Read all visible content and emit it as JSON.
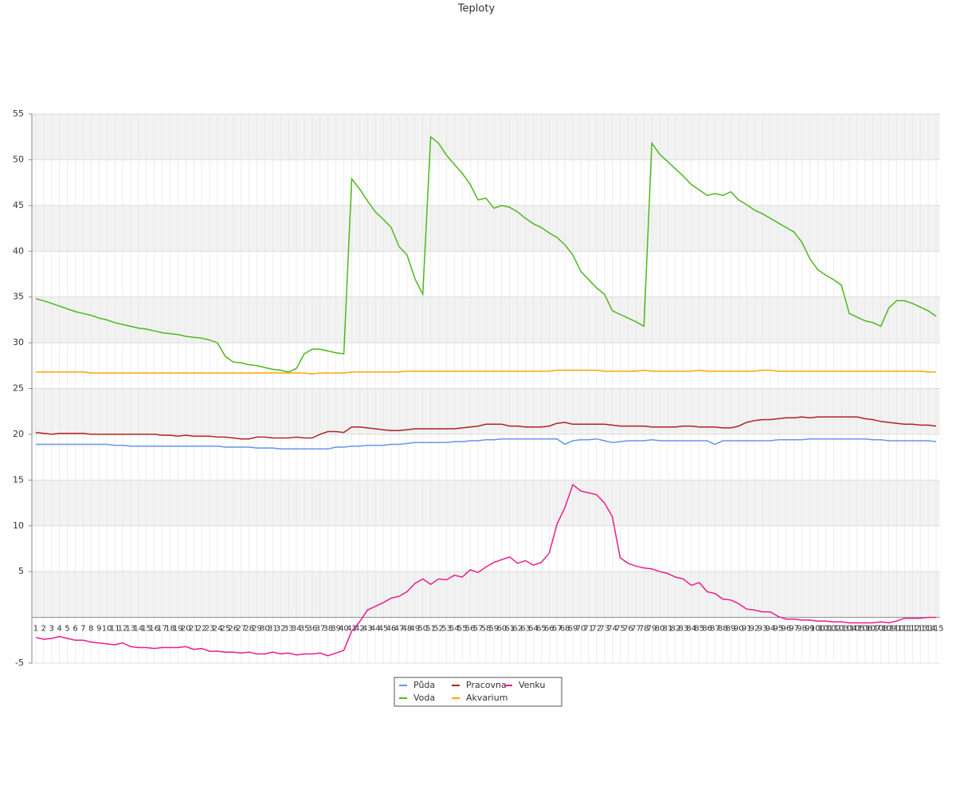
{
  "chart_data": {
    "type": "line",
    "title": "Teploty",
    "categories": [
      1,
      2,
      3,
      4,
      5,
      6,
      7,
      8,
      9,
      10,
      11,
      12,
      13,
      14,
      15,
      16,
      17,
      18,
      19,
      20,
      21,
      22,
      23,
      24,
      25,
      26,
      27,
      28,
      29,
      30,
      31,
      32,
      33,
      34,
      35,
      36,
      37,
      38,
      39,
      40,
      41,
      42,
      43,
      44,
      45,
      46,
      47,
      48,
      49,
      50,
      51,
      52,
      53,
      54,
      55,
      56,
      57,
      58,
      59,
      60,
      61,
      62,
      63,
      64,
      65,
      66,
      67,
      68,
      69,
      70,
      71,
      72,
      73,
      74,
      75,
      76,
      77,
      78,
      79,
      80,
      81,
      82,
      83,
      84,
      85,
      86,
      87,
      88,
      89,
      90,
      91,
      92,
      93,
      94,
      95,
      96,
      97,
      98,
      99,
      100,
      101,
      102,
      103,
      104,
      105,
      106,
      107,
      108,
      109,
      110,
      111,
      112,
      113,
      114,
      115
    ],
    "series": [
      {
        "name": "Půda",
        "color": "#6495ed",
        "values": [
          18.9,
          18.9,
          18.9,
          18.9,
          18.9,
          18.9,
          18.9,
          18.9,
          18.9,
          18.9,
          18.8,
          18.8,
          18.7,
          18.7,
          18.7,
          18.7,
          18.7,
          18.7,
          18.7,
          18.7,
          18.7,
          18.7,
          18.7,
          18.7,
          18.6,
          18.6,
          18.6,
          18.6,
          18.5,
          18.5,
          18.5,
          18.4,
          18.4,
          18.4,
          18.4,
          18.4,
          18.4,
          18.4,
          18.6,
          18.6,
          18.7,
          18.7,
          18.8,
          18.8,
          18.8,
          18.9,
          18.9,
          19.0,
          19.1,
          19.1,
          19.1,
          19.1,
          19.1,
          19.2,
          19.2,
          19.3,
          19.3,
          19.4,
          19.4,
          19.5,
          19.5,
          19.5,
          19.5,
          19.5,
          19.5,
          19.5,
          19.5,
          18.9,
          19.3,
          19.4,
          19.4,
          19.5,
          19.3,
          19.1,
          19.2,
          19.3,
          19.3,
          19.3,
          19.4,
          19.3,
          19.3,
          19.3,
          19.3,
          19.3,
          19.3,
          19.3,
          18.9,
          19.3,
          19.3,
          19.3,
          19.3,
          19.3,
          19.3,
          19.3,
          19.4,
          19.4,
          19.4,
          19.4,
          19.5,
          19.5,
          19.5,
          19.5,
          19.5,
          19.5,
          19.5,
          19.5,
          19.4,
          19.4,
          19.3,
          19.3,
          19.3,
          19.3,
          19.3,
          19.3,
          19.2
        ]
      },
      {
        "name": "Voda",
        "color": "#4cb81a",
        "values": [
          34.8,
          34.6,
          34.3,
          34.0,
          33.7,
          33.4,
          33.2,
          33.0,
          32.7,
          32.5,
          32.2,
          32.0,
          31.8,
          31.6,
          31.5,
          31.3,
          31.1,
          31.0,
          30.9,
          30.7,
          30.6,
          30.5,
          30.3,
          30.0,
          28.5,
          27.9,
          27.8,
          27.6,
          27.5,
          27.3,
          27.1,
          27.0,
          26.8,
          27.2,
          28.8,
          29.3,
          29.3,
          29.1,
          28.9,
          28.8,
          47.9,
          46.8,
          45.5,
          44.3,
          43.5,
          42.6,
          40.5,
          39.6,
          37.0,
          35.3,
          52.5,
          51.8,
          50.5,
          49.5,
          48.5,
          47.3,
          45.6,
          45.8,
          44.7,
          45.0,
          44.8,
          44.3,
          43.6,
          43.0,
          42.6,
          42.0,
          41.5,
          40.7,
          39.6,
          37.8,
          36.9,
          36.0,
          35.3,
          33.5,
          33.1,
          32.7,
          32.3,
          31.8,
          51.8,
          50.6,
          49.8,
          49.0,
          48.2,
          47.3,
          46.7,
          46.1,
          46.3,
          46.1,
          46.5,
          45.6,
          45.1,
          44.5,
          44.1,
          43.6,
          43.1,
          42.6,
          42.1,
          41.0,
          39.2,
          38.0,
          37.4,
          36.9,
          36.3,
          33.2,
          32.8,
          32.4,
          32.2,
          31.8,
          33.8,
          34.6,
          34.6,
          34.3,
          33.9,
          33.5,
          32.9
        ]
      },
      {
        "name": "Pracovna",
        "color": "#b22222",
        "values": [
          20.2,
          20.1,
          20.0,
          20.1,
          20.1,
          20.1,
          20.1,
          20.0,
          20.0,
          20.0,
          20.0,
          20.0,
          20.0,
          20.0,
          20.0,
          20.0,
          19.9,
          19.9,
          19.8,
          19.9,
          19.8,
          19.8,
          19.8,
          19.7,
          19.7,
          19.6,
          19.5,
          19.5,
          19.7,
          19.7,
          19.6,
          19.6,
          19.6,
          19.7,
          19.6,
          19.6,
          20.0,
          20.3,
          20.3,
          20.2,
          20.8,
          20.8,
          20.7,
          20.6,
          20.5,
          20.4,
          20.4,
          20.5,
          20.6,
          20.6,
          20.6,
          20.6,
          20.6,
          20.6,
          20.7,
          20.8,
          20.9,
          21.1,
          21.1,
          21.1,
          20.9,
          20.9,
          20.8,
          20.8,
          20.8,
          20.9,
          21.2,
          21.3,
          21.1,
          21.1,
          21.1,
          21.1,
          21.1,
          21.0,
          20.9,
          20.9,
          20.9,
          20.9,
          20.8,
          20.8,
          20.8,
          20.8,
          20.9,
          20.9,
          20.8,
          20.8,
          20.8,
          20.7,
          20.7,
          20.9,
          21.3,
          21.5,
          21.6,
          21.6,
          21.7,
          21.8,
          21.8,
          21.9,
          21.8,
          21.9,
          21.9,
          21.9,
          21.9,
          21.9,
          21.9,
          21.7,
          21.6,
          21.4,
          21.3,
          21.2,
          21.1,
          21.1,
          21.0,
          21.0,
          20.9
        ]
      },
      {
        "name": "Akvarium",
        "color": "#ffa500",
        "values": [
          26.8,
          26.8,
          26.8,
          26.8,
          26.8,
          26.8,
          26.8,
          26.7,
          26.7,
          26.7,
          26.7,
          26.7,
          26.7,
          26.7,
          26.7,
          26.7,
          26.7,
          26.7,
          26.7,
          26.7,
          26.7,
          26.7,
          26.7,
          26.7,
          26.7,
          26.7,
          26.7,
          26.7,
          26.7,
          26.7,
          26.7,
          26.7,
          26.7,
          26.7,
          26.7,
          26.6,
          26.7,
          26.7,
          26.7,
          26.7,
          26.8,
          26.8,
          26.8,
          26.8,
          26.8,
          26.8,
          26.8,
          26.9,
          26.9,
          26.9,
          26.9,
          26.9,
          26.9,
          26.9,
          26.9,
          26.9,
          26.9,
          26.9,
          26.9,
          26.9,
          26.9,
          26.9,
          26.9,
          26.9,
          26.9,
          26.9,
          27.0,
          27.0,
          27.0,
          27.0,
          27.0,
          27.0,
          26.9,
          26.9,
          26.9,
          26.9,
          26.9,
          27.0,
          26.9,
          26.9,
          26.9,
          26.9,
          26.9,
          26.9,
          27.0,
          26.9,
          26.9,
          26.9,
          26.9,
          26.9,
          26.9,
          26.9,
          27.0,
          27.0,
          26.9,
          26.9,
          26.9,
          26.9,
          26.9,
          26.9,
          26.9,
          26.9,
          26.9,
          26.9,
          26.9,
          26.9,
          26.9,
          26.9,
          26.9,
          26.9,
          26.9,
          26.9,
          26.9,
          26.8,
          26.8
        ]
      },
      {
        "name": "Venku",
        "color": "#e91e8c",
        "values": [
          -2.2,
          -2.4,
          -2.3,
          -2.1,
          -2.3,
          -2.5,
          -2.5,
          -2.7,
          -2.8,
          -2.9,
          -3.0,
          -2.8,
          -3.2,
          -3.3,
          -3.3,
          -3.4,
          -3.3,
          -3.3,
          -3.3,
          -3.2,
          -3.5,
          -3.4,
          -3.7,
          -3.7,
          -3.8,
          -3.8,
          -3.9,
          -3.8,
          -4.0,
          -4.0,
          -3.8,
          -4.0,
          -3.9,
          -4.1,
          -4.0,
          -4.0,
          -3.9,
          -4.2,
          -3.9,
          -3.6,
          -1.5,
          -0.5,
          0.8,
          1.2,
          1.6,
          2.1,
          2.3,
          2.8,
          3.7,
          4.2,
          3.6,
          4.2,
          4.1,
          4.6,
          4.4,
          5.2,
          4.9,
          5.5,
          6.0,
          6.3,
          6.6,
          5.9,
          6.2,
          5.7,
          6.0,
          7.0,
          10.2,
          12.0,
          14.5,
          13.8,
          13.6,
          13.4,
          12.5,
          11.0,
          6.5,
          5.9,
          5.6,
          5.4,
          5.3,
          5.0,
          4.8,
          4.4,
          4.2,
          3.5,
          3.8,
          2.8,
          2.6,
          2.0,
          1.9,
          1.5,
          0.9,
          0.8,
          0.6,
          0.6,
          0.1,
          -0.2,
          -0.2,
          -0.3,
          -0.3,
          -0.4,
          -0.4,
          -0.5,
          -0.5,
          -0.6,
          -0.6,
          -0.6,
          -0.6,
          -0.5,
          -0.6,
          -0.4,
          -0.1,
          -0.1,
          -0.1,
          0.0,
          0.0
        ]
      }
    ],
    "ylim": [
      -5,
      55
    ],
    "yticks": [
      -5,
      5,
      10,
      15,
      20,
      25,
      30,
      35,
      40,
      45,
      50,
      55
    ],
    "grid": true,
    "legend": "bottom"
  }
}
